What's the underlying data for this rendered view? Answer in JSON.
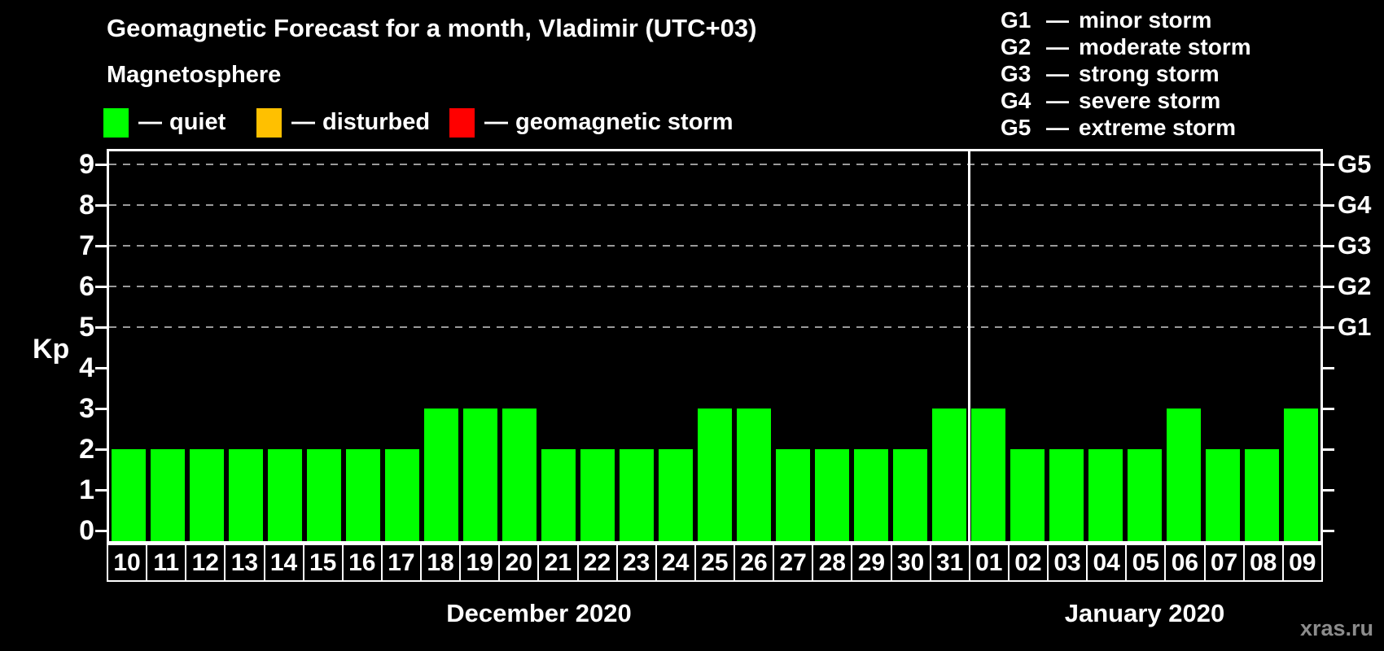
{
  "watermark": "xras.ru",
  "magnetosphere_legend": {
    "heading": "Magnetosphere",
    "separator": "—",
    "items": [
      {
        "label": "quiet",
        "color": "#00ff00"
      },
      {
        "label": "disturbed",
        "color": "#ffc000"
      },
      {
        "label": "geomagnetic storm",
        "color": "#ff0000"
      }
    ]
  },
  "storm_scale_legend": {
    "separator": "—",
    "items": [
      {
        "code": "G1",
        "label": "minor storm"
      },
      {
        "code": "G2",
        "label": "moderate storm"
      },
      {
        "code": "G3",
        "label": "strong storm"
      },
      {
        "code": "G4",
        "label": "severe storm"
      },
      {
        "code": "G5",
        "label": "extreme storm"
      }
    ]
  },
  "chart_data": {
    "type": "bar",
    "title": "Geomagnetic Forecast for a month, Vladimir (UTC+03)",
    "ylabel": "Kp",
    "ylim": [
      0,
      9
    ],
    "yticks": [
      0,
      1,
      2,
      3,
      4,
      5,
      6,
      7,
      8,
      9
    ],
    "gridlines_at": [
      5,
      6,
      7,
      8,
      9
    ],
    "grid": "dashed gray horizontal lines at storm levels G1-G5",
    "right_axis_labels": [
      {
        "kp": 5,
        "label": "G1"
      },
      {
        "kp": 6,
        "label": "G2"
      },
      {
        "kp": 7,
        "label": "G3"
      },
      {
        "kp": 8,
        "label": "G4"
      },
      {
        "kp": 9,
        "label": "G5"
      }
    ],
    "bar_color": "#00ff00",
    "bar_meaning": "quiet",
    "months": [
      {
        "label": "December 2020",
        "days": [
          "10",
          "11",
          "12",
          "13",
          "14",
          "15",
          "16",
          "17",
          "18",
          "19",
          "20",
          "21",
          "22",
          "23",
          "24",
          "25",
          "26",
          "27",
          "28",
          "29",
          "30",
          "31"
        ],
        "values": [
          2,
          2,
          2,
          2,
          2,
          2,
          2,
          2,
          3,
          3,
          3,
          2,
          2,
          2,
          2,
          3,
          3,
          2,
          2,
          2,
          2,
          3
        ]
      },
      {
        "label": "January 2020",
        "days": [
          "01",
          "02",
          "03",
          "04",
          "05",
          "06",
          "07",
          "08",
          "09"
        ],
        "values": [
          3,
          2,
          2,
          2,
          2,
          3,
          2,
          2,
          3
        ]
      }
    ]
  }
}
